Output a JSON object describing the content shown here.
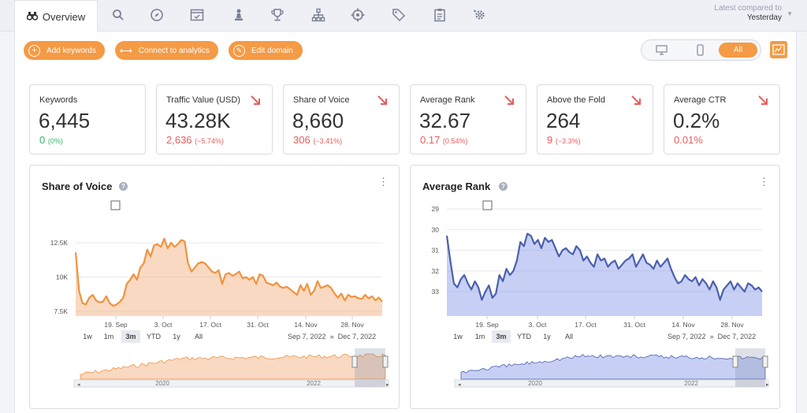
{
  "header": {
    "overview_tab": "Overview",
    "compare_label": "Latest compared to",
    "compare_value": "Yesterday",
    "nav_icons": [
      "search-icon",
      "compass-icon",
      "calendar-check-icon",
      "chess-pawn-icon",
      "trophy-icon",
      "sitemap-icon",
      "crosshair-icon",
      "tags-icon",
      "clipboard-icon",
      "settings-icon"
    ]
  },
  "actions": {
    "add_keywords": "Add keywords",
    "connect_analytics": "Connect to analytics",
    "edit_domain": "Edit domain"
  },
  "device": {
    "all_label": "All"
  },
  "kpis": [
    {
      "title": "Keywords",
      "value": "6,445",
      "delta": "0",
      "pct": "(0%)",
      "trend": "flat"
    },
    {
      "title": "Traffic Value (USD)",
      "value": "43.28K",
      "delta": "2,636",
      "pct": "(−5.74%)",
      "trend": "down"
    },
    {
      "title": "Share of Voice",
      "value": "8,660",
      "delta": "306",
      "pct": "(−3.41%)",
      "trend": "down"
    },
    {
      "title": "Average Rank",
      "value": "32.67",
      "delta": "0.17",
      "pct": "(0.54%)",
      "trend": "down"
    },
    {
      "title": "Above the Fold",
      "value": "264",
      "delta": "9",
      "pct": "(−3.3%)",
      "trend": "down"
    },
    {
      "title": "Average CTR",
      "value": "0.2%",
      "delta": "0.01%",
      "pct": "",
      "trend": "down"
    }
  ],
  "colors": {
    "accent": "#f59a45",
    "up": "#3ab566",
    "down": "#e85c5c",
    "sov_line": "#f0933e",
    "rank_line": "#4a5fae"
  },
  "range_buttons": [
    "1w",
    "1m",
    "3m",
    "YTD",
    "1y",
    "All"
  ],
  "selected_range": "3m",
  "date_from": "Sep 7, 2022",
  "date_sep": "»",
  "date_to": "Dec 7, 2022",
  "chart_data": [
    {
      "type": "area",
      "title": "Share of Voice",
      "x_ticks": [
        "19. Sep",
        "3. Oct",
        "17. Oct",
        "31. Oct",
        "14. Nov",
        "28. Nov"
      ],
      "y_ticks": [
        "12.5K",
        "10K",
        "7.5K"
      ],
      "ylim": [
        6000,
        13500
      ],
      "x_start": "2022-09-07",
      "x_end": "2022-12-07",
      "values": [
        11800,
        9000,
        8100,
        8000,
        8500,
        8700,
        8300,
        8150,
        8200,
        8600,
        8100,
        7900,
        8000,
        8200,
        8500,
        9500,
        9800,
        10200,
        9800,
        10700,
        11000,
        12000,
        11500,
        12300,
        12400,
        12200,
        12800,
        12100,
        12500,
        12200,
        12400,
        12700,
        12600,
        11000,
        10400,
        10700,
        11000,
        11100,
        11000,
        10700,
        10400,
        10300,
        10500,
        9500,
        10200,
        10300,
        10100,
        10200,
        10400,
        9900,
        10000,
        9800,
        10000,
        9500,
        10200,
        10100,
        9600,
        9500,
        9400,
        9600,
        9300,
        9200,
        9300,
        9100,
        8900,
        8700,
        9400,
        9000,
        9500,
        8700,
        9000,
        9700,
        9200,
        9300,
        9400,
        9200,
        8800,
        8500,
        8800,
        8300,
        8700,
        8550,
        8600,
        8450,
        8400,
        8700,
        8450,
        8600,
        8300,
        8500,
        8200
      ],
      "navigator": {
        "years": [
          "2020",
          "2022"
        ]
      }
    },
    {
      "type": "line",
      "title": "Average Rank",
      "x_ticks": [
        "19. Sep",
        "3. Oct",
        "17. Oct",
        "31. Oct",
        "14. Nov",
        "28. Nov"
      ],
      "y_ticks": [
        "29",
        "30",
        "31",
        "32",
        "33"
      ],
      "ylim": [
        28.5,
        34.1
      ],
      "y_inverted": true,
      "values": [
        30.3,
        31.5,
        32.6,
        32.8,
        32.4,
        32.2,
        32.6,
        32.9,
        32.5,
        32.8,
        33.4,
        33.0,
        32.7,
        33.3,
        33.1,
        32.2,
        32.5,
        31.9,
        32.2,
        32.0,
        31.5,
        30.6,
        30.8,
        30.2,
        30.3,
        30.7,
        30.5,
        30.9,
        30.4,
        30.6,
        30.5,
        30.9,
        31.3,
        31.0,
        30.9,
        31.1,
        31.2,
        30.8,
        31.0,
        31.5,
        31.3,
        31.6,
        31.8,
        31.2,
        31.5,
        31.4,
        31.8,
        31.6,
        31.5,
        31.9,
        31.7,
        31.5,
        31.4,
        31.2,
        31.8,
        31.5,
        31.2,
        31.6,
        31.7,
        31.9,
        31.5,
        31.8,
        31.6,
        31.4,
        31.9,
        32.3,
        32.6,
        32.5,
        32.2,
        32.4,
        32.5,
        32.3,
        32.7,
        32.4,
        32.6,
        32.9,
        32.5,
        32.8,
        33.4,
        32.9,
        32.7,
        32.5,
        32.9,
        32.6,
        32.8,
        33.0,
        32.6,
        32.7,
        32.9,
        32.8,
        33.0
      ],
      "navigator": {
        "years": [
          "2020",
          "2022"
        ]
      }
    }
  ]
}
